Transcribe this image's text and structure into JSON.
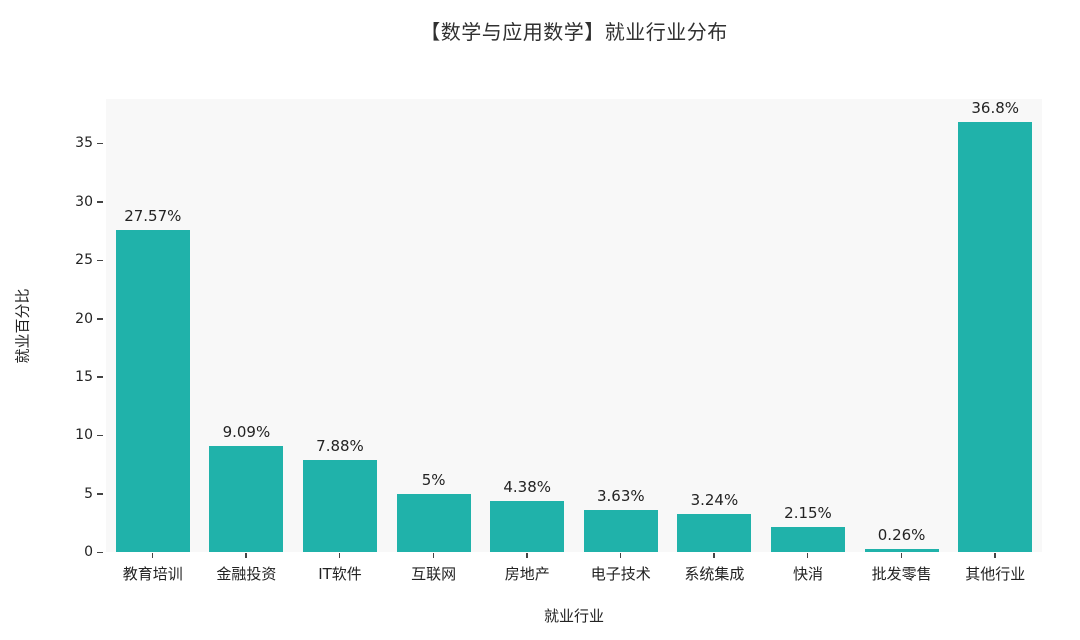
{
  "title": "【数学与应用数学】就业行业分布",
  "colors": {
    "bar": "#20b2aa",
    "plot_background": "#f8f8f8",
    "page_background": "#ffffff",
    "text": "#232323"
  },
  "chart_data": {
    "type": "bar",
    "title": "【数学与应用数学】就业行业分布",
    "xlabel": "就业行业",
    "ylabel": "就业百分比",
    "categories": [
      "教育培训",
      "金融投资",
      "IT软件",
      "互联网",
      "房地产",
      "电子技术",
      "系统集成",
      "快消",
      "批发零售",
      "其他行业"
    ],
    "values": [
      27.57,
      9.09,
      7.88,
      5,
      4.38,
      3.63,
      3.24,
      2.15,
      0.26,
      36.8
    ],
    "value_labels": [
      "27.57%",
      "9.09%",
      "7.88%",
      "5%",
      "4.38%",
      "3.63%",
      "3.24%",
      "2.15%",
      "0.26%",
      "36.8%"
    ],
    "yticks": [
      0,
      5,
      10,
      15,
      20,
      25,
      30,
      35
    ],
    "ylim": [
      0,
      38.8
    ],
    "grid": false,
    "legend_position": "none",
    "bar_color": "#20b2aa"
  }
}
